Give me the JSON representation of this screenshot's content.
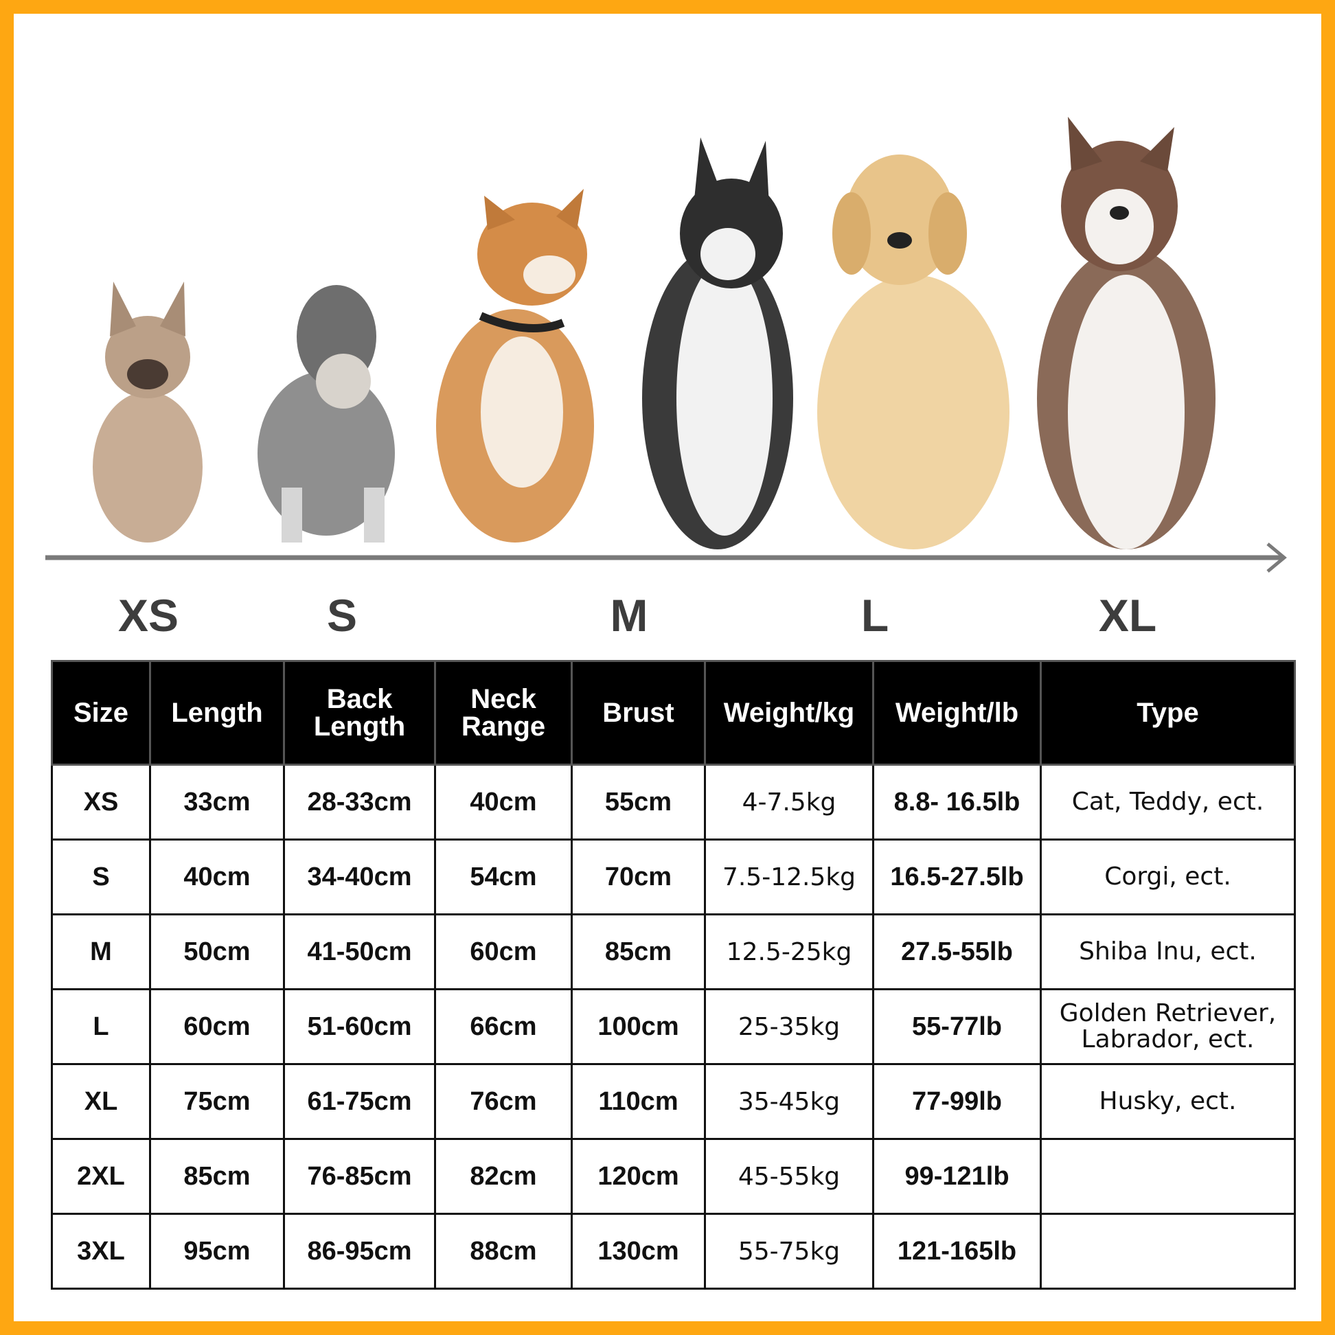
{
  "colors": {
    "border": "#fea712",
    "header_bg": "#000000",
    "arrow": "#7a7a7a"
  },
  "dogs": [
    "french-bulldog",
    "schnauzer",
    "shiba-inu",
    "husky",
    "golden-retriever",
    "alaskan-malamute"
  ],
  "size_labels": [
    "XS",
    "S",
    "M",
    "L",
    "XL"
  ],
  "table": {
    "headers": [
      {
        "main": "Size",
        "sub": ""
      },
      {
        "main": "Length",
        "sub": ""
      },
      {
        "main": "Back Length",
        "sub": ""
      },
      {
        "main": "Neck Range",
        "sub": ""
      },
      {
        "main": "Brust",
        "sub": ""
      },
      {
        "main": "Weight/",
        "sub": "kg"
      },
      {
        "main": "Weight/",
        "sub": "lb"
      },
      {
        "main": "Type",
        "sub": ""
      }
    ],
    "rows": [
      [
        "XS",
        "33cm",
        "28-33cm",
        "40cm",
        "55cm",
        "4-7.5kg",
        "8.8- 16.5lb",
        "Cat, Teddy, ect."
      ],
      [
        "S",
        "40cm",
        "34-40cm",
        "54cm",
        "70cm",
        "7.5-12.5kg",
        "16.5-27.5lb",
        "Corgi, ect."
      ],
      [
        "M",
        "50cm",
        "41-50cm",
        "60cm",
        "85cm",
        "12.5-25kg",
        "27.5-55lb",
        "Shiba Inu, ect."
      ],
      [
        "L",
        "60cm",
        "51-60cm",
        "66cm",
        "100cm",
        "25-35kg",
        "55-77lb",
        "Golden Retriever, Labrador, ect."
      ],
      [
        "XL",
        "75cm",
        "61-75cm",
        "76cm",
        "110cm",
        "35-45kg",
        "77-99lb",
        "Husky, ect."
      ],
      [
        "2XL",
        "85cm",
        "76-85cm",
        "82cm",
        "120cm",
        "45-55kg",
        "99-121lb",
        ""
      ],
      [
        "3XL",
        "95cm",
        "86-95cm",
        "88cm",
        "130cm",
        "55-75kg",
        "121-165lb",
        ""
      ]
    ]
  }
}
